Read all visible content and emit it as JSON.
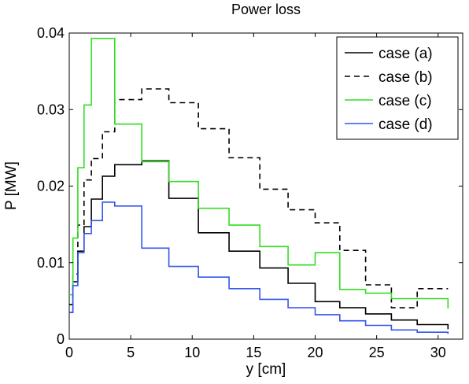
{
  "chart_data": {
    "type": "line",
    "step": true,
    "title": "Power loss",
    "xlabel": "y [cm]",
    "ylabel": "P [MW]",
    "xlim": [
      0,
      32
    ],
    "ylim": [
      0,
      0.04
    ],
    "xticks": [
      0,
      5,
      10,
      15,
      20,
      25,
      30
    ],
    "yticks": [
      0,
      0.01,
      0.02,
      0.03,
      0.04
    ],
    "xtick_labels": [
      "0",
      "5",
      "10",
      "15",
      "20",
      "25",
      "30"
    ],
    "ytick_labels": [
      "0",
      "0.01",
      "0.02",
      "0.03",
      "0.04"
    ],
    "grid": false,
    "legend_position": "top-right",
    "edges": [
      0,
      0.3,
      0.7,
      1.2,
      1.8,
      2.7,
      3.7,
      5.9,
      8.1,
      10.5,
      13.0,
      15.5,
      17.8,
      20.0,
      22.0,
      24.1,
      26.2,
      28.3,
      30.8
    ],
    "series": [
      {
        "name": "case (a)",
        "color": "#000000",
        "dash": "solid",
        "values": [
          0.0035,
          0.0075,
          0.0115,
          0.0147,
          0.0183,
          0.0213,
          0.0228,
          0.0233,
          0.0184,
          0.0139,
          0.0115,
          0.0093,
          0.0073,
          0.0049,
          0.0041,
          0.0033,
          0.0025,
          0.0019,
          0.0013
        ]
      },
      {
        "name": "case (b)",
        "color": "#000000",
        "dash": "dashed",
        "values": [
          0.0045,
          0.0085,
          0.0149,
          0.0208,
          0.0236,
          0.0271,
          0.0313,
          0.0327,
          0.0309,
          0.0275,
          0.0237,
          0.0196,
          0.0169,
          0.0152,
          0.0116,
          0.0071,
          0.0041,
          0.0066,
          0.0066
        ]
      },
      {
        "name": "case (c)",
        "color": "#33dd22",
        "dash": "solid",
        "values": [
          0.0058,
          0.0132,
          0.0224,
          0.0306,
          0.0393,
          0.0393,
          0.0281,
          0.0232,
          0.0206,
          0.0171,
          0.0149,
          0.0121,
          0.0097,
          0.0113,
          0.0065,
          0.006,
          0.0053,
          0.0053,
          0.004
        ]
      },
      {
        "name": "case (d)",
        "color": "#3355ee",
        "dash": "solid",
        "values": [
          0.0035,
          0.007,
          0.0113,
          0.0138,
          0.0155,
          0.0179,
          0.0174,
          0.0119,
          0.0095,
          0.0081,
          0.0066,
          0.0052,
          0.0041,
          0.0032,
          0.0024,
          0.0018,
          0.0012,
          0.0009,
          0.0007
        ]
      }
    ]
  }
}
